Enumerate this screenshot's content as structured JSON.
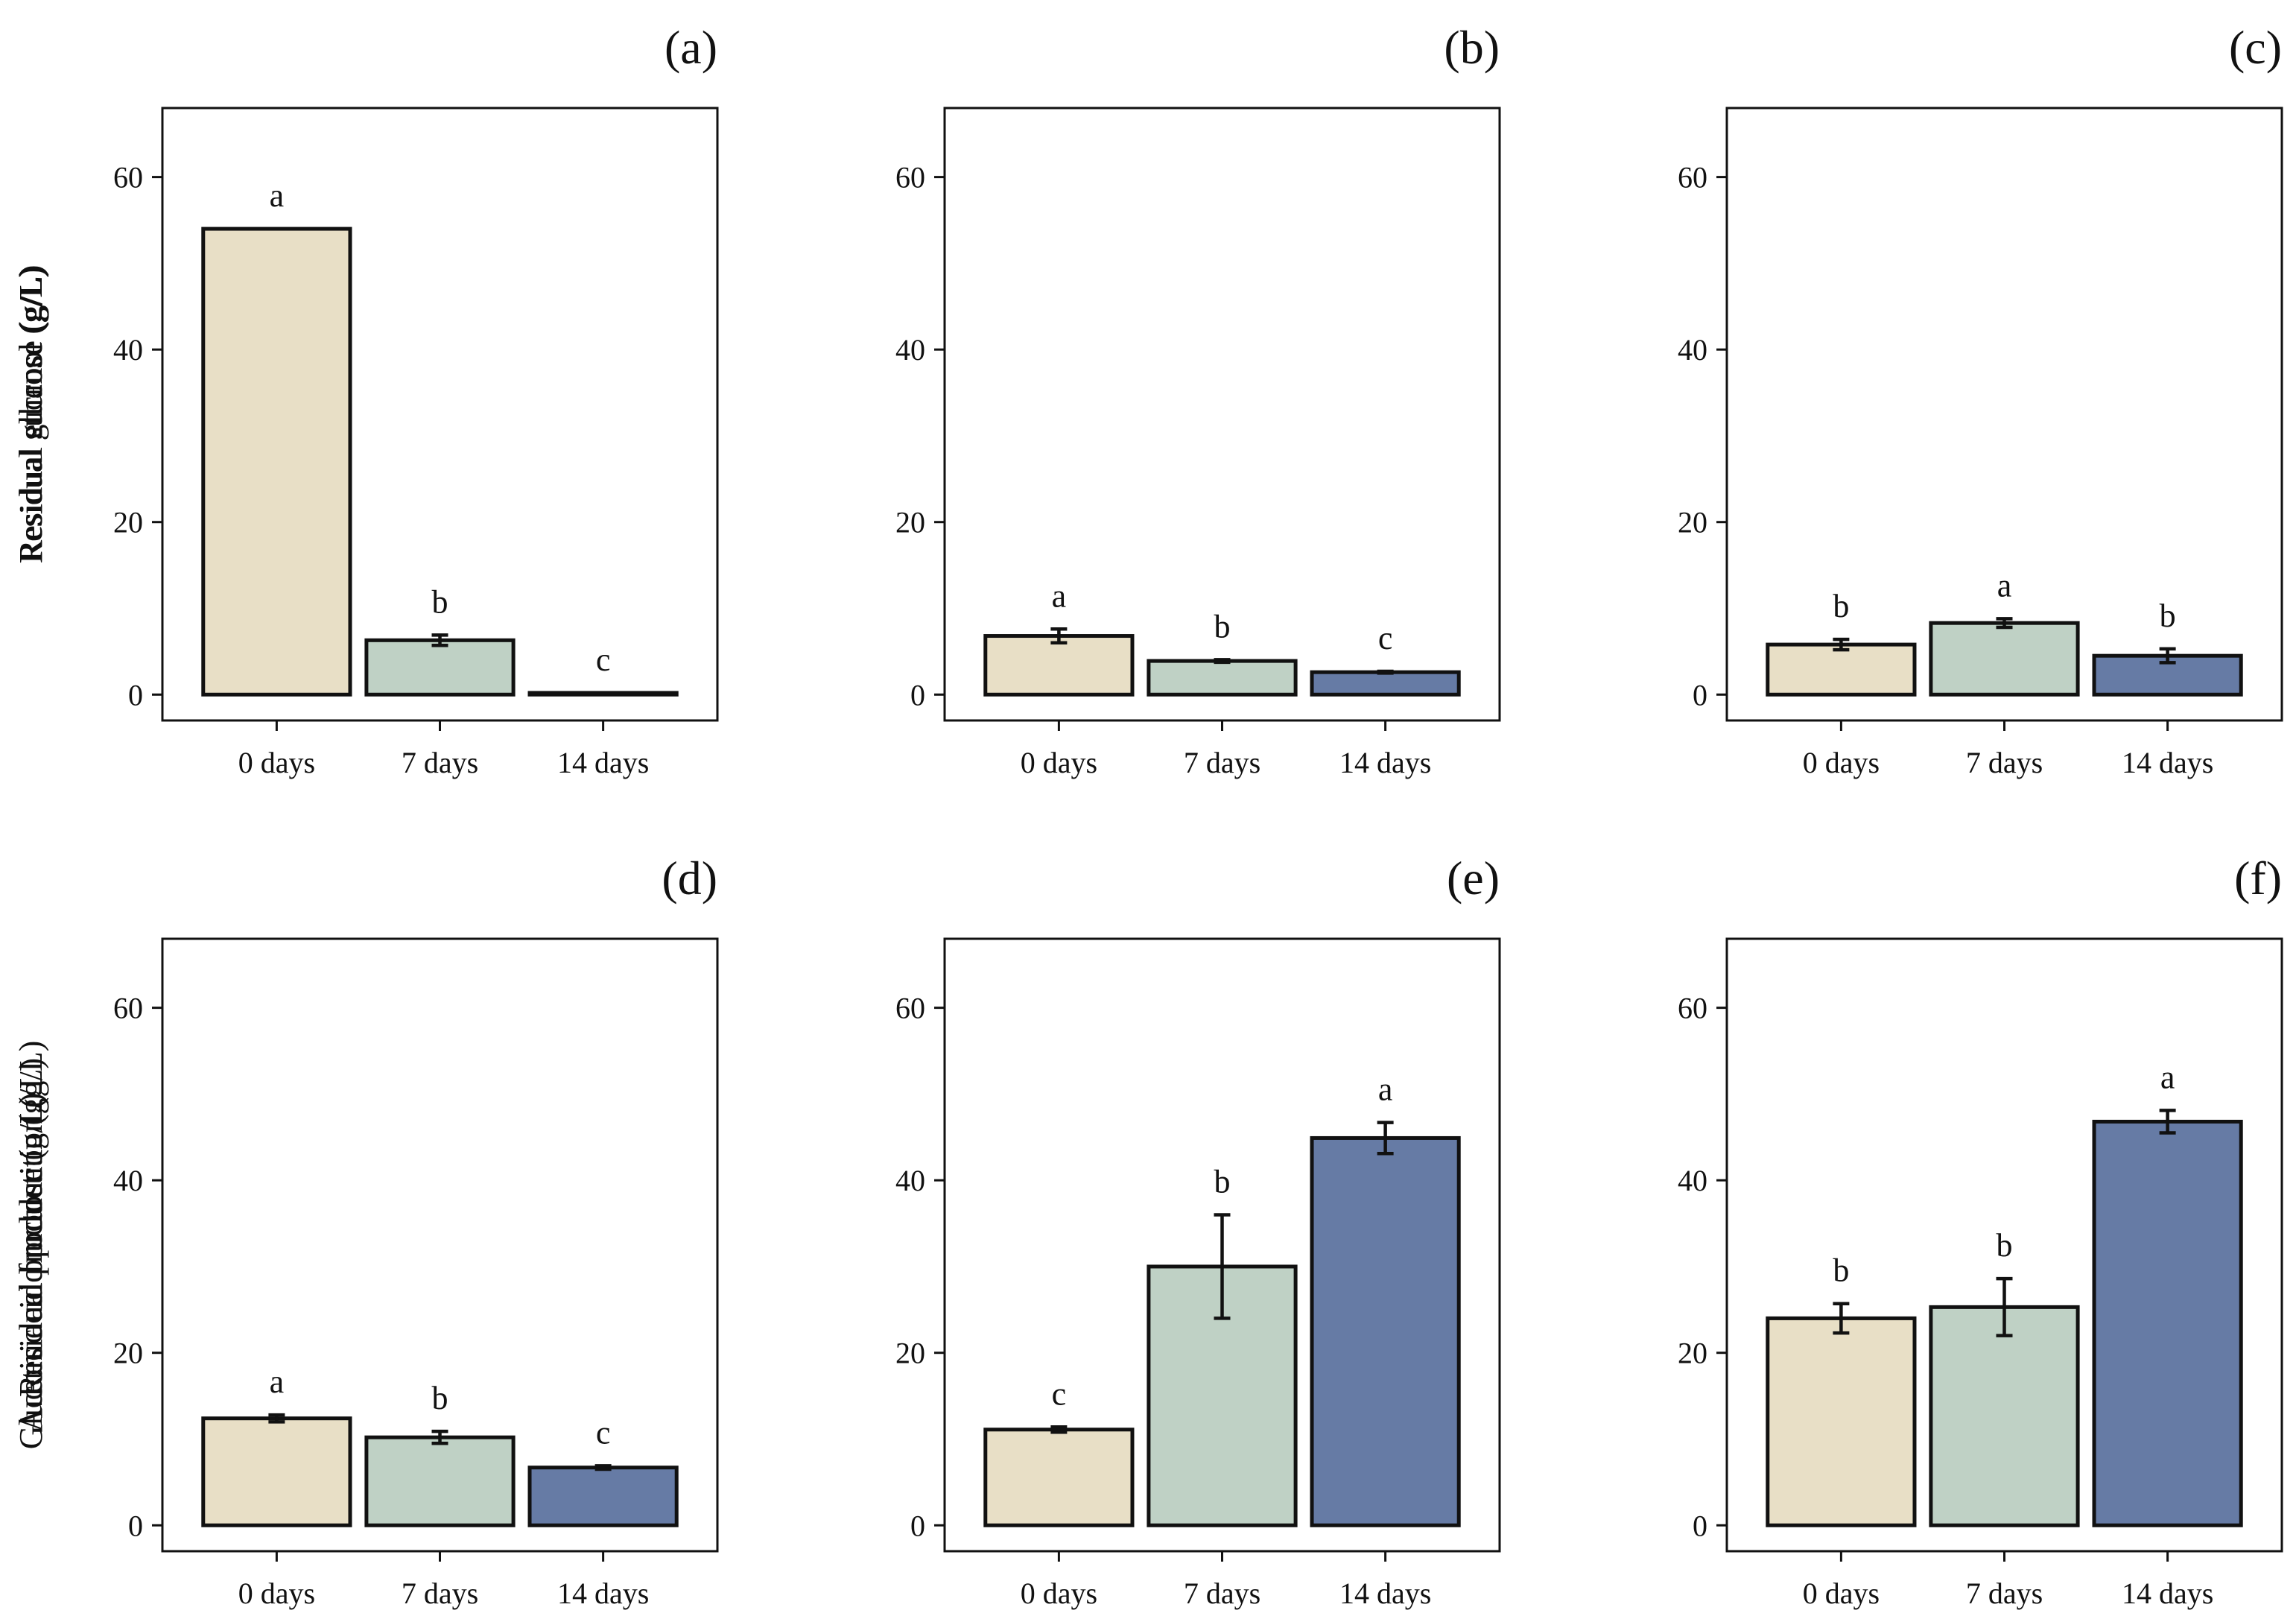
{
  "chart_data": [
    {
      "type": "bar",
      "panel_label": "(a)",
      "ylabel": "Residual ethanol (g/L)",
      "xlabel": "",
      "ylim": [
        -3,
        68
      ],
      "yticks": [
        "0",
        "20",
        "40",
        "60"
      ],
      "categories": [
        "0 days",
        "7 days",
        "14 days"
      ],
      "values": [
        54.0,
        6.3,
        0.2
      ],
      "errors": [
        0.0,
        0.6,
        0.0
      ],
      "significance": [
        "a",
        "b",
        "c"
      ]
    },
    {
      "type": "bar",
      "panel_label": "(b)",
      "ylabel": "Residual sucrose (g/L)",
      "xlabel": "",
      "ylim": [
        -3,
        68
      ],
      "yticks": [
        "0",
        "20",
        "40",
        "60"
      ],
      "categories": [
        "0 days",
        "7 days",
        "14 days"
      ],
      "values": [
        6.8,
        3.9,
        2.6
      ],
      "errors": [
        0.8,
        0.15,
        0.1
      ],
      "significance": [
        "a",
        "b",
        "c"
      ]
    },
    {
      "type": "bar",
      "panel_label": "(c)",
      "ylabel": "Residual glucose (g/L)",
      "xlabel": "",
      "ylim": [
        -3,
        68
      ],
      "yticks": [
        "0",
        "20",
        "40",
        "60"
      ],
      "categories": [
        "0 days",
        "7 days",
        "14 days"
      ],
      "values": [
        5.8,
        8.3,
        4.5
      ],
      "errors": [
        0.6,
        0.5,
        0.8
      ],
      "significance": [
        "b",
        "a",
        "b"
      ]
    },
    {
      "type": "bar",
      "panel_label": "(d)",
      "ylabel": "Residual fructose (g/L)",
      "xlabel": "",
      "ylim": [
        -3,
        68
      ],
      "yticks": [
        "0",
        "20",
        "40",
        "60"
      ],
      "categories": [
        "0 days",
        "7 days",
        "14 days"
      ],
      "values": [
        12.4,
        10.2,
        6.7
      ],
      "errors": [
        0.4,
        0.7,
        0.2
      ],
      "significance": [
        "a",
        "b",
        "c"
      ]
    },
    {
      "type": "bar",
      "panel_label": "(e)",
      "ylabel": "Gluconic acid production (g/L)",
      "xlabel": "",
      "ylim": [
        -3,
        68
      ],
      "yticks": [
        "0",
        "20",
        "40",
        "60"
      ],
      "categories": [
        "0 days",
        "7 days",
        "14 days"
      ],
      "values": [
        11.1,
        30.0,
        44.9
      ],
      "errors": [
        0.3,
        6.0,
        1.8
      ],
      "significance": [
        "c",
        "b",
        "a"
      ]
    },
    {
      "type": "bar",
      "panel_label": "(f)",
      "ylabel": "Acetic acid production (g/L)",
      "xlabel": "",
      "ylim": [
        -3,
        68
      ],
      "yticks": [
        "0",
        "20",
        "40",
        "60"
      ],
      "categories": [
        "0 days",
        "7 days",
        "14 days"
      ],
      "values": [
        24.0,
        25.3,
        46.8
      ],
      "errors": [
        1.7,
        3.3,
        1.3
      ],
      "significance": [
        "b",
        "b",
        "a"
      ]
    }
  ],
  "colors": {
    "0 days": "#e8dfc6",
    "7 days": "#bfd1c5",
    "14 days": "#667ba5",
    "axis": "#111111"
  },
  "grid": false,
  "legend": "none"
}
